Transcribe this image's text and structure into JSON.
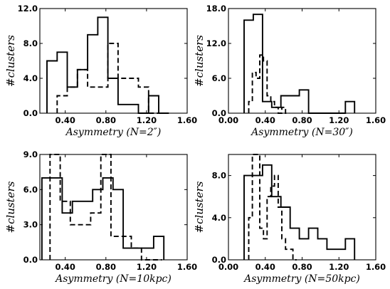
{
  "chart_data": [
    {
      "type": "histogram",
      "xlabel": "Asymmetry (N=2″)",
      "ylabel": "#clusters",
      "xlim": [
        0.15,
        1.6
      ],
      "ylim": [
        0,
        12
      ],
      "xticks": [
        "0.40",
        "0.80",
        "1.20",
        "1.60"
      ],
      "xtick_values": [
        0.4,
        0.8,
        1.2,
        1.6
      ],
      "yticks": [
        "0.0",
        "4.0",
        "8.0",
        "12.0"
      ],
      "ytick_values": [
        0,
        4,
        8,
        12
      ],
      "series": [
        {
          "style": "solid",
          "bin_edges": [
            0.22,
            0.32,
            0.42,
            0.52,
            0.62,
            0.72,
            0.82,
            0.92,
            1.02,
            1.12,
            1.22,
            1.32,
            1.42
          ],
          "counts": [
            6,
            7,
            3,
            5,
            9,
            11,
            4,
            1,
            1,
            0,
            2,
            0
          ]
        },
        {
          "style": "dashed",
          "bin_edges": [
            0.32,
            0.42,
            0.52,
            0.62,
            0.72,
            0.82,
            0.92,
            1.02,
            1.12,
            1.22,
            1.32
          ],
          "counts": [
            2,
            3,
            5,
            3,
            3,
            8,
            4,
            4,
            3,
            0
          ]
        }
      ]
    },
    {
      "type": "histogram",
      "xlabel": "Asymmetry (N=30″)",
      "ylabel": "#clusters",
      "xlim": [
        0.0,
        1.6
      ],
      "ylim": [
        0,
        18
      ],
      "xticks": [
        "0.00",
        "0.40",
        "0.80",
        "1.20",
        "1.60"
      ],
      "xtick_values": [
        0.0,
        0.4,
        0.8,
        1.2,
        1.6
      ],
      "yticks": [
        "0.0",
        "6.0",
        "12.0",
        "18.0"
      ],
      "ytick_values": [
        0,
        6,
        12,
        18
      ],
      "series": [
        {
          "style": "solid",
          "bin_edges": [
            0.17,
            0.27,
            0.37,
            0.47,
            0.57,
            0.67,
            0.77,
            0.87,
            0.97,
            1.07,
            1.17,
            1.27,
            1.37
          ],
          "counts": [
            16,
            17,
            2,
            1,
            3,
            3,
            4,
            0,
            0,
            0,
            0,
            2
          ]
        },
        {
          "style": "dashed",
          "bin_edges": [
            0.22,
            0.26,
            0.3,
            0.34,
            0.38,
            0.42,
            0.46,
            0.5,
            0.54,
            0.58,
            0.62,
            0.66
          ],
          "counts": [
            2,
            7,
            6,
            10,
            9,
            3,
            2,
            1,
            0,
            1,
            0
          ]
        }
      ]
    },
    {
      "type": "histogram",
      "xlabel": "Asymmetry (N=10kpc)",
      "ylabel": "#clusters",
      "xlim": [
        0.15,
        1.6
      ],
      "ylim": [
        0,
        9
      ],
      "xticks": [
        "0.40",
        "0.80",
        "1.20",
        "1.60"
      ],
      "xtick_values": [
        0.4,
        0.8,
        1.2,
        1.6
      ],
      "yticks": [
        "0.0",
        "3.0",
        "6.0",
        "9.0"
      ],
      "ytick_values": [
        0,
        3,
        6,
        9
      ],
      "series": [
        {
          "style": "solid",
          "bin_edges": [
            0.17,
            0.27,
            0.37,
            0.47,
            0.57,
            0.67,
            0.77,
            0.87,
            0.97,
            1.07,
            1.17,
            1.27,
            1.37
          ],
          "counts": [
            7,
            7,
            4,
            5,
            5,
            6,
            7,
            6,
            1,
            1,
            1,
            2
          ]
        },
        {
          "style": "dashed",
          "bin_edges": [
            0.25,
            0.35,
            0.45,
            0.55,
            0.65,
            0.75,
            0.85,
            0.95,
            1.05,
            1.15,
            1.25,
            1.35
          ],
          "counts": [
            9,
            5,
            3,
            3,
            4,
            9,
            2,
            2,
            1,
            0,
            0
          ]
        }
      ]
    },
    {
      "type": "histogram",
      "xlabel": "Asymmetry (N=50kpc)",
      "ylabel": "#clusters",
      "xlim": [
        0.0,
        1.6
      ],
      "ylim": [
        0,
        10
      ],
      "xticks": [
        "0.00",
        "0.40",
        "0.80",
        "1.20",
        "1.60"
      ],
      "xtick_values": [
        0.0,
        0.4,
        0.8,
        1.2,
        1.6
      ],
      "yticks": [
        "0.0",
        "4.0",
        "8.0"
      ],
      "ytick_values": [
        0,
        4,
        8
      ],
      "series": [
        {
          "style": "solid",
          "bin_edges": [
            0.17,
            0.27,
            0.37,
            0.47,
            0.57,
            0.67,
            0.77,
            0.87,
            0.97,
            1.07,
            1.17,
            1.27,
            1.37
          ],
          "counts": [
            8,
            8,
            9,
            6,
            5,
            3,
            2,
            3,
            2,
            1,
            1,
            2
          ]
        },
        {
          "style": "dashed",
          "bin_edges": [
            0.22,
            0.26,
            0.3,
            0.34,
            0.38,
            0.42,
            0.46,
            0.5,
            0.54,
            0.58,
            0.62,
            0.66,
            0.7,
            0.74
          ],
          "counts": [
            4,
            10,
            10,
            3,
            2,
            6,
            7,
            8,
            5,
            2,
            1,
            1,
            0
          ]
        }
      ]
    }
  ]
}
